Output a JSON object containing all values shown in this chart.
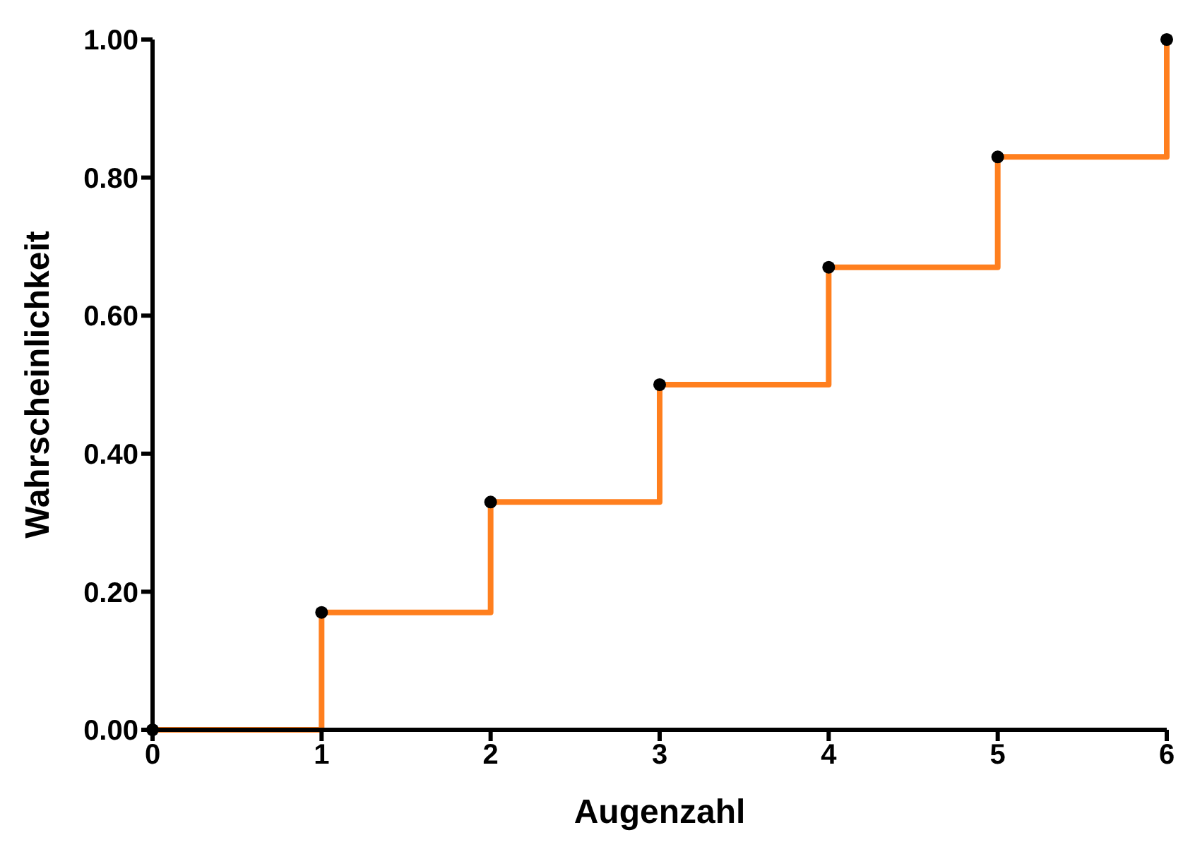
{
  "chart_data": {
    "type": "step",
    "xlabel": "Augenzahl",
    "ylabel": "Wahrscheinlichkeit",
    "x": [
      0,
      1,
      2,
      3,
      4,
      5,
      6
    ],
    "series": [
      {
        "color": "#ff7f1e",
        "marker": "none",
        "values": [
          0,
          0.17,
          0.33,
          0.5,
          0.67,
          0.83,
          1.0
        ]
      },
      {
        "type": "scatter",
        "color": "#000000",
        "marker": "circle",
        "values": [
          0,
          0.17,
          0.33,
          0.5,
          0.67,
          0.83,
          1.0
        ]
      }
    ],
    "xlim": [
      0,
      6
    ],
    "xticks": [
      0,
      1,
      2,
      3,
      4,
      5,
      6
    ],
    "ylim": [
      0,
      1
    ],
    "yticks": [
      {
        "value": 0,
        "label": "0.00"
      },
      {
        "value": 0.2,
        "label": "0.20"
      },
      {
        "value": 0.4,
        "label": "0.40"
      },
      {
        "value": 0.6,
        "label": "0.60"
      },
      {
        "value": 0.8,
        "label": "0.80"
      },
      {
        "value": 1,
        "label": "1.00"
      }
    ],
    "grid": false,
    "legend": false
  }
}
